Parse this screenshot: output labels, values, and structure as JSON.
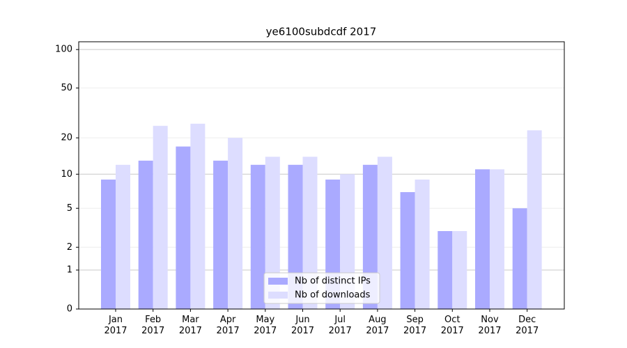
{
  "chart_data": {
    "type": "bar",
    "title": "ye6100subdcdf 2017",
    "categories": [
      "Jan\n2017",
      "Feb\n2017",
      "Mar\n2017",
      "Apr\n2017",
      "May\n2017",
      "Jun\n2017",
      "Jul\n2017",
      "Aug\n2017",
      "Sep\n2017",
      "Oct\n2017",
      "Nov\n2017",
      "Dec\n2017"
    ],
    "series": [
      {
        "name": "Nb of distinct IPs",
        "color": "#aaaaff",
        "values": [
          9,
          13,
          17,
          13,
          12,
          12,
          9,
          12,
          7,
          3,
          11,
          5
        ]
      },
      {
        "name": "Nb of downloads",
        "color": "#ddddff",
        "values": [
          12,
          25,
          26,
          20,
          14,
          14,
          10,
          14,
          9,
          3,
          11,
          23
        ]
      }
    ],
    "yscale": "log1p",
    "ylim": [
      0,
      115
    ],
    "yticks": [
      0,
      1,
      2,
      5,
      10,
      20,
      50,
      100
    ],
    "grid": true,
    "legend": "lower center"
  }
}
